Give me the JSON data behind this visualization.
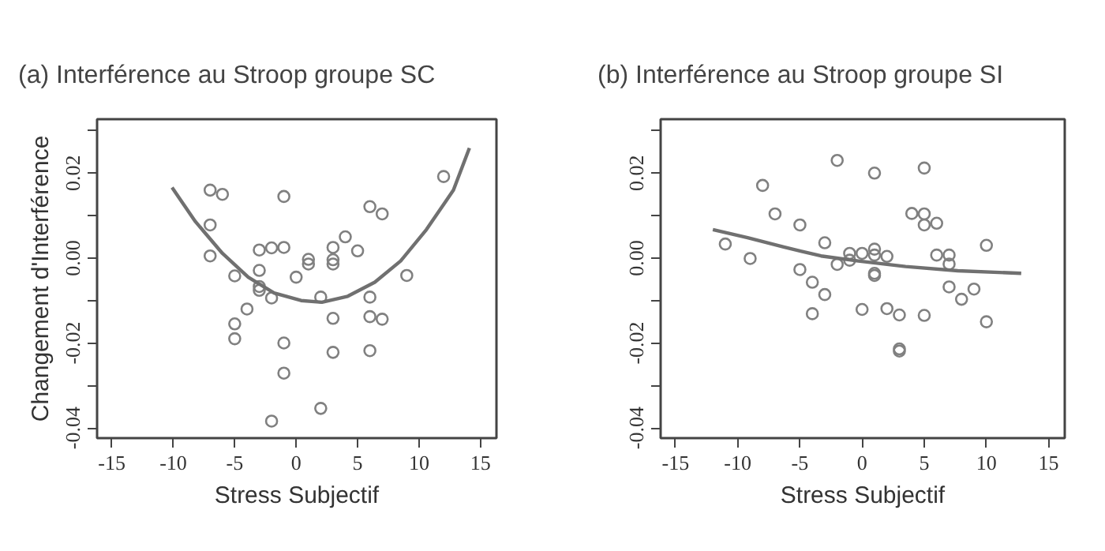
{
  "chart_data": [
    {
      "type": "scatter",
      "title": "(a) Interférence au Stroop groupe SC",
      "xlabel": "Stress Subjectif",
      "ylabel": "Changement d'Interférence",
      "xlim": [
        -16.2,
        16.3
      ],
      "ylim": [
        -0.0424,
        0.0327
      ],
      "xticks": [
        -15,
        -10,
        -5,
        0,
        5,
        10,
        15
      ],
      "yticks": [
        {
          "value": -0.04,
          "label": "-0.04"
        },
        {
          "value": -0.03,
          "label": null
        },
        {
          "value": -0.02,
          "label": "-0.02"
        },
        {
          "value": -0.01,
          "label": null
        },
        {
          "value": 0.0,
          "label": "0.00"
        },
        {
          "value": 0.01,
          "label": null
        },
        {
          "value": 0.02,
          "label": "0.02"
        },
        {
          "value": 0.03,
          "label": null
        }
      ],
      "grid": false,
      "series": [
        {
          "marker": "circle",
          "color": "#808080",
          "x": [
            -7,
            -6,
            -1,
            6,
            7,
            12,
            -7,
            -7,
            4,
            -3,
            -2,
            -1,
            3,
            5,
            1,
            1,
            3,
            3,
            -3,
            -5,
            0,
            9,
            -3,
            -3,
            -2,
            2,
            6,
            -4,
            -5,
            -5,
            3,
            6,
            7,
            -1,
            3,
            6,
            -1,
            -2,
            2
          ],
          "values": [
            0.016,
            0.015,
            0.0145,
            0.0121,
            0.0104,
            0.0192,
            0.0078,
            0.0005,
            0.005,
            0.0019,
            0.0024,
            0.0025,
            0.0025,
            0.0017,
            -0.0003,
            -0.0014,
            -0.0004,
            -0.0014,
            -0.0029,
            -0.0042,
            -0.0045,
            -0.0041,
            -0.0067,
            -0.0076,
            -0.0094,
            -0.0092,
            -0.0092,
            -0.012,
            -0.0155,
            -0.019,
            -0.0142,
            -0.0138,
            -0.0144,
            -0.02,
            -0.0222,
            -0.0218,
            -0.0271,
            -0.0384,
            -0.0354
          ]
        },
        {
          "type": "line",
          "color": "#707070",
          "x": [
            -10.1,
            -8.2,
            -6.0,
            -3.9,
            -1.8,
            0.4,
            2.1,
            4.2,
            6.4,
            8.5,
            10.6,
            12.8,
            14.1
          ],
          "values": [
            0.0166,
            0.0086,
            0.0011,
            -0.0045,
            -0.0082,
            -0.01,
            -0.0104,
            -0.009,
            -0.0057,
            -0.0007,
            0.0067,
            0.016,
            0.0259
          ]
        }
      ]
    },
    {
      "type": "scatter",
      "title": "(b) Interférence au Stroop groupe SI",
      "xlabel": "Stress Subjectif",
      "xlim": [
        -16.2,
        16.3
      ],
      "ylim": [
        -0.0424,
        0.0327
      ],
      "xticks": [
        -15,
        -10,
        -5,
        0,
        5,
        10,
        15
      ],
      "yticks": [
        {
          "value": -0.04,
          "label": "-0.04"
        },
        {
          "value": -0.03,
          "label": null
        },
        {
          "value": -0.02,
          "label": "-0.02"
        },
        {
          "value": -0.01,
          "label": null
        },
        {
          "value": 0.0,
          "label": "0.00"
        },
        {
          "value": 0.01,
          "label": null
        },
        {
          "value": 0.02,
          "label": "0.02"
        },
        {
          "value": 0.03,
          "label": null
        }
      ],
      "grid": false,
      "series": [
        {
          "marker": "circle",
          "color": "#808080",
          "x": [
            -2,
            1,
            5,
            -8,
            -7,
            -5,
            4,
            5,
            5,
            6,
            -11,
            -9,
            -3,
            -1,
            -1,
            0,
            1,
            1,
            2,
            6,
            7,
            7,
            10,
            -2,
            -5,
            -4,
            -3,
            1,
            1,
            7,
            8,
            9,
            -4,
            0,
            2,
            3,
            5,
            10,
            3,
            3
          ],
          "values": [
            0.023,
            0.02,
            0.0212,
            0.0171,
            0.0104,
            0.0078,
            0.0105,
            0.0104,
            0.0078,
            0.0082,
            0.0033,
            -0.0001,
            0.0036,
            0.0011,
            -0.0005,
            0.0011,
            0.0021,
            0.0007,
            0.0004,
            0.0007,
            0.0007,
            -0.0014,
            0.003,
            -0.0015,
            -0.0027,
            -0.0057,
            -0.0086,
            -0.0036,
            -0.0041,
            -0.0068,
            -0.0097,
            -0.0073,
            -0.0131,
            -0.0121,
            -0.0119,
            -0.0134,
            -0.0135,
            -0.015,
            -0.0214,
            -0.0219
          ]
        },
        {
          "type": "line",
          "color": "#707070",
          "x": [
            -12.0,
            -9.2,
            -6.3,
            -3.3,
            -0.3,
            3.5,
            7.7,
            12.8
          ],
          "values": [
            0.0067,
            0.0048,
            0.0026,
            0.0005,
            -0.0007,
            -0.002,
            -0.003,
            -0.0036
          ]
        }
      ]
    }
  ]
}
